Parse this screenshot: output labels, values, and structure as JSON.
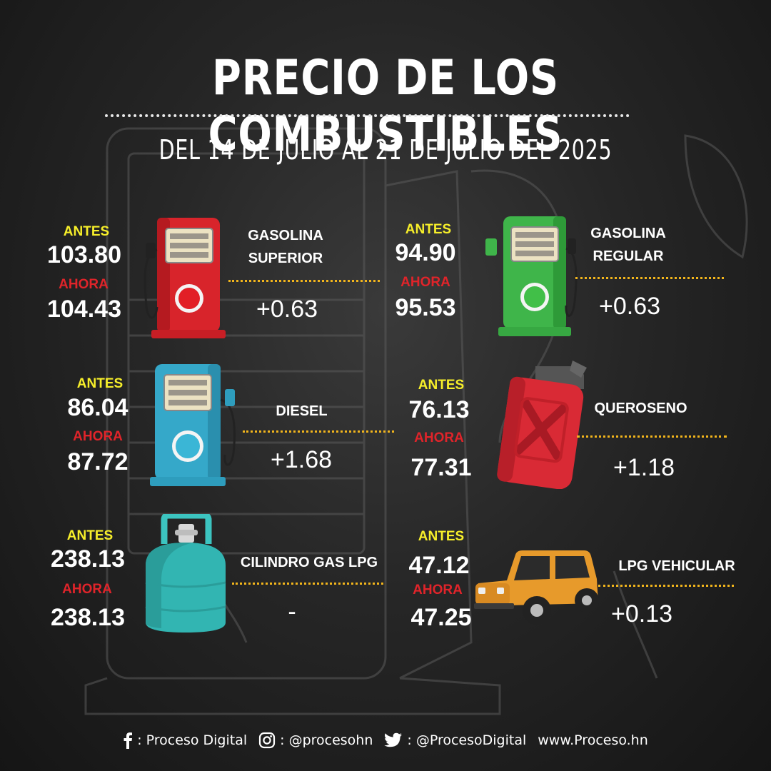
{
  "header": {
    "title": "PRECIO DE LOS COMBUSTIBLES",
    "subtitle": "DEL 14 DE JULIO AL 21 DE JULIO DEL 2025"
  },
  "labels": {
    "antes": "ANTES",
    "ahora": "AHORA"
  },
  "items": [
    {
      "name_line1": "GASOLINA",
      "name_line2": "SUPERIOR",
      "antes": "103.80",
      "ahora": "104.43",
      "change": "+0.63",
      "icon": "red-fuel-pump-icon"
    },
    {
      "name_line1": "GASOLINA",
      "name_line2": "REGULAR",
      "antes": "94.90",
      "ahora": "95.53",
      "change": "+0.63",
      "icon": "green-fuel-pump-icon"
    },
    {
      "name_line1": "DIESEL",
      "antes": "86.04",
      "ahora": "87.72",
      "change": "+1.68",
      "icon": "blue-fuel-pump-icon"
    },
    {
      "name_line1": "QUEROSENO",
      "antes": "76.13",
      "ahora": "77.31",
      "change": "+1.18",
      "icon": "jerry-can-icon"
    },
    {
      "name_line1": "CILINDRO GAS LPG",
      "antes": "238.13",
      "ahora": "238.13",
      "change": "-",
      "icon": "gas-cylinder-icon"
    },
    {
      "name_line1": "LPG VEHICULAR",
      "antes": "47.12",
      "ahora": "47.25",
      "change": "+0.13",
      "icon": "suv-car-icon"
    }
  ],
  "footer": {
    "facebook": ": Proceso Digital",
    "instagram": ": @procesohn",
    "twitter": ": @ProcesoDigital",
    "website": "www.Proceso.hn"
  },
  "colors": {
    "antes": "#f7ef2a",
    "ahora": "#e0242a",
    "dots": "#f2b51c",
    "background": "#262626"
  }
}
